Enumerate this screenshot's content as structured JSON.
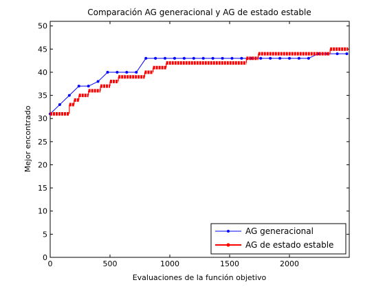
{
  "chart_data": {
    "type": "line",
    "title": "Comparación AG generacional y AG de estado estable",
    "xlabel": "Evaluaciones de la función objetivo",
    "ylabel": "Mejor encontrado",
    "xlim": [
      0,
      2500
    ],
    "ylim": [
      0,
      51
    ],
    "xticks": [
      0,
      500,
      1000,
      1500,
      2000
    ],
    "yticks": [
      0,
      5,
      10,
      15,
      20,
      25,
      30,
      35,
      40,
      45,
      50
    ],
    "grid": false,
    "legend_position": "bottom-right",
    "series": [
      {
        "name": "AG generacional",
        "color": "#0000ff",
        "marker": "dot",
        "x": [
          0,
          80,
          160,
          240,
          320,
          400,
          480,
          560,
          640,
          720,
          800,
          880,
          960,
          1040,
          1120,
          1200,
          1280,
          1360,
          1440,
          1520,
          1600,
          1680,
          1760,
          1840,
          1920,
          2000,
          2080,
          2160,
          2240,
          2320,
          2400,
          2480
        ],
        "y": [
          31,
          33,
          35,
          37,
          37,
          38,
          40,
          40,
          40,
          40,
          43,
          43,
          43,
          43,
          43,
          43,
          43,
          43,
          43,
          43,
          43,
          43,
          43,
          43,
          43,
          43,
          43,
          43,
          44,
          44,
          44,
          44
        ]
      },
      {
        "name": "AG de estado estable",
        "color": "#ff0000",
        "marker": "dot",
        "segments": [
          {
            "x0": 0,
            "x1": 160,
            "y": 31
          },
          {
            "x0": 160,
            "x1": 200,
            "y": 33
          },
          {
            "x0": 200,
            "x1": 240,
            "y": 34
          },
          {
            "x0": 240,
            "x1": 320,
            "y": 35
          },
          {
            "x0": 320,
            "x1": 420,
            "y": 36
          },
          {
            "x0": 420,
            "x1": 500,
            "y": 37
          },
          {
            "x0": 500,
            "x1": 570,
            "y": 38
          },
          {
            "x0": 570,
            "x1": 790,
            "y": 39
          },
          {
            "x0": 790,
            "x1": 860,
            "y": 40
          },
          {
            "x0": 860,
            "x1": 970,
            "y": 41
          },
          {
            "x0": 970,
            "x1": 1640,
            "y": 42
          },
          {
            "x0": 1640,
            "x1": 1740,
            "y": 43
          },
          {
            "x0": 1740,
            "x1": 2340,
            "y": 44
          },
          {
            "x0": 2340,
            "x1": 2490,
            "y": 45
          }
        ]
      }
    ]
  }
}
